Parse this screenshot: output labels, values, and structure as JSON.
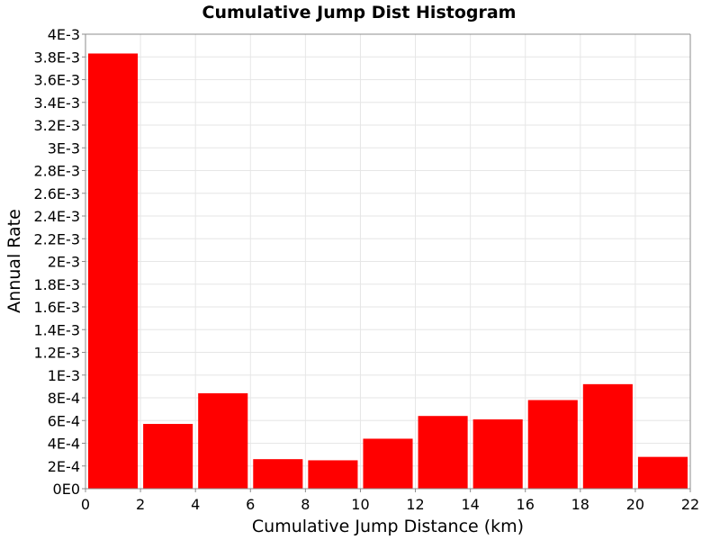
{
  "chart_data": {
    "type": "bar",
    "title": "Cumulative Jump Dist Histogram",
    "xlabel": "Cumulative Jump Distance (km)",
    "ylabel": "Annual Rate",
    "xlim": [
      0,
      22
    ],
    "ylim": [
      0,
      0.004
    ],
    "grid": true,
    "legend": "none",
    "bar_color": "#ff0000",
    "x_ticks": [
      0,
      2,
      4,
      6,
      8,
      10,
      12,
      14,
      16,
      18,
      20,
      22
    ],
    "x_tick_labels": [
      "0",
      "2",
      "4",
      "6",
      "8",
      "10",
      "12",
      "14",
      "16",
      "18",
      "20",
      "22"
    ],
    "y_ticks": [
      0,
      0.0002,
      0.0004,
      0.0006,
      0.0008,
      0.001,
      0.0012,
      0.0014,
      0.0016,
      0.0018,
      0.002,
      0.0022,
      0.0024,
      0.0026,
      0.0028,
      0.003,
      0.0032,
      0.0034,
      0.0036,
      0.0038,
      0.004
    ],
    "y_tick_labels": [
      "0E0",
      "2E-4",
      "4E-4",
      "6E-4",
      "8E-4",
      "1E-3",
      "1.2E-3",
      "1.4E-3",
      "1.6E-3",
      "1.8E-3",
      "2E-3",
      "2.2E-3",
      "2.4E-3",
      "2.6E-3",
      "2.8E-3",
      "3E-3",
      "3.2E-3",
      "3.4E-3",
      "3.6E-3",
      "3.8E-3",
      "4E-3"
    ],
    "bins": [
      {
        "x_start": 0,
        "x_end": 2,
        "value": 0.00383
      },
      {
        "x_start": 2,
        "x_end": 4,
        "value": 0.00057
      },
      {
        "x_start": 4,
        "x_end": 6,
        "value": 0.00084
      },
      {
        "x_start": 6,
        "x_end": 8,
        "value": 0.00026
      },
      {
        "x_start": 8,
        "x_end": 10,
        "value": 0.00025
      },
      {
        "x_start": 10,
        "x_end": 12,
        "value": 0.00044
      },
      {
        "x_start": 12,
        "x_end": 14,
        "value": 0.00064
      },
      {
        "x_start": 14,
        "x_end": 16,
        "value": 0.00061
      },
      {
        "x_start": 16,
        "x_end": 18,
        "value": 0.00078
      },
      {
        "x_start": 18,
        "x_end": 20,
        "value": 0.00092
      },
      {
        "x_start": 20,
        "x_end": 22,
        "value": 0.00028
      }
    ]
  }
}
